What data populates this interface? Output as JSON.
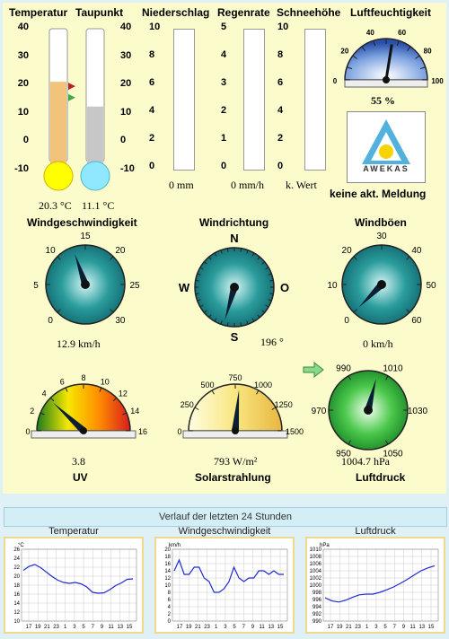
{
  "headers": {
    "temperatur": "Temperatur",
    "taupunkt": "Taupunkt",
    "niederschlag": "Niederschlag",
    "regenrate": "Regenrate",
    "schneehoehe": "Schneehöhe",
    "luftfeuchtigkeit": "Luftfeuchtigkeit",
    "windgeschwindigkeit": "Windgeschwindigkeit",
    "windrichtung": "Windrichtung",
    "windboeen": "Windböen",
    "uv": "UV",
    "solarstrahlung": "Solarstrahlung",
    "luftdruck": "Luftdruck"
  },
  "thermo": {
    "scale": [
      "40",
      "30",
      "20",
      "10",
      "0",
      "-10"
    ],
    "scale_right": [
      "40",
      "30",
      "20",
      "10",
      "0",
      "-10"
    ],
    "temp_value": 20.3,
    "dew_value": 11.1,
    "min": -10,
    "max": 40,
    "temp_text": "20.3 °C",
    "dew_text": "11.1 °C"
  },
  "bars": {
    "niederschlag_scale": [
      "10",
      "8",
      "6",
      "4",
      "2",
      "0"
    ],
    "regenrate_scale": [
      "5",
      "4",
      "3",
      "2",
      "1",
      "0"
    ],
    "schnee_scale": [
      "10",
      "8",
      "6",
      "4",
      "2",
      "0"
    ],
    "niederschlag_text": "0 mm",
    "regenrate_text": "0 mm/h",
    "schnee_text": "k. Wert"
  },
  "humidity": {
    "value": 55,
    "text": "55 %",
    "ticks": [
      "0",
      "10",
      "20",
      "30",
      "40",
      "50",
      "60",
      "70",
      "80",
      "90",
      "100"
    ]
  },
  "awekas": {
    "logo_text": "AWEKAS",
    "message": "keine akt. Meldung"
  },
  "wind": {
    "ticks": [
      "0",
      "5",
      "10",
      "15",
      "20",
      "25",
      "30"
    ],
    "value": 12.9,
    "text": "12.9 km/h"
  },
  "direction": {
    "n": "N",
    "o": "O",
    "s": "S",
    "w": "W",
    "value": 196,
    "text": "196 °"
  },
  "gusts": {
    "ticks": [
      "0",
      "10",
      "20",
      "30",
      "40",
      "50",
      "60"
    ],
    "value": 0,
    "text": "0 km/h"
  },
  "uv": {
    "ticks": [
      "0",
      "2",
      "4",
      "6",
      "8",
      "10",
      "12",
      "14",
      "16"
    ],
    "value": 3.8,
    "text": "3.8"
  },
  "solar": {
    "ticks": [
      "0",
      "250",
      "500",
      "750",
      "1000",
      "1250",
      "1500"
    ],
    "value": 793,
    "text": "793 W/m²"
  },
  "pressure": {
    "ticks": [
      "950",
      "970",
      "990",
      "1010",
      "1030",
      "1050"
    ],
    "value": 1004.7,
    "text": "1004.7 hPa"
  },
  "history": {
    "title": "Verlauf der letzten 24 Stunden",
    "charts": [
      {
        "title": "Temperatur",
        "unit": "°C",
        "yticks": [
          "26",
          "24",
          "22",
          "20",
          "18",
          "16",
          "14",
          "12",
          "10"
        ]
      },
      {
        "title": "Windgeschwindigkeit",
        "unit": "km/h",
        "yticks": [
          "20",
          "18",
          "16",
          "14",
          "12",
          "10",
          "8",
          "6",
          "4",
          "2",
          "0"
        ]
      },
      {
        "title": "Luftdruck",
        "unit": "hPa",
        "yticks": [
          "1010",
          "1008",
          "1006",
          "1004",
          "1002",
          "1000",
          "998",
          "996",
          "994",
          "992",
          "990"
        ]
      }
    ],
    "xticks": [
      "17",
      "19",
      "21",
      "23",
      "1",
      "3",
      "5",
      "7",
      "9",
      "11",
      "13",
      "15"
    ]
  },
  "chart_data": [
    {
      "type": "line",
      "title": "Temperatur",
      "ylabel": "°C",
      "ylim": [
        10,
        26
      ],
      "values": [
        21.3,
        22.2,
        22.6,
        21.9,
        20.9,
        19.9,
        19.1,
        18.6,
        18.4,
        18.6,
        18.3,
        17.6,
        16.4,
        16.2,
        16.3,
        17.0,
        17.9,
        18.5,
        19.3,
        19.4
      ]
    },
    {
      "type": "line",
      "title": "Windgeschwindigkeit",
      "ylabel": "km/h",
      "ylim": [
        0,
        20
      ],
      "values": [
        14,
        17,
        13,
        13,
        15,
        15,
        12,
        11,
        8,
        8,
        9,
        11,
        15,
        12,
        11,
        12,
        12,
        14,
        14,
        13,
        14,
        13,
        13
      ]
    },
    {
      "type": "line",
      "title": "Luftdruck",
      "ylabel": "hPa",
      "ylim": [
        990,
        1010
      ],
      "values": [
        996.5,
        995.6,
        995.3,
        995.8,
        996.6,
        997.3,
        997.5,
        997.5,
        998.0,
        998.7,
        999.5,
        1000.5,
        1001.6,
        1002.8,
        1004.0,
        1004.8,
        1005.4
      ]
    }
  ]
}
